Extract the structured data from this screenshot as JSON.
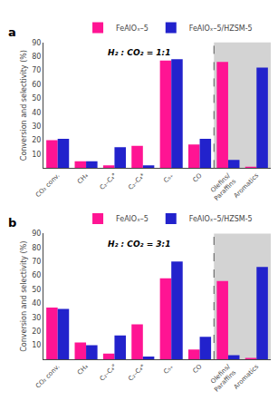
{
  "chart_data": [
    {
      "type": "bar",
      "title": "H₂ : CO₂ = 1:1",
      "annotations": [
        "a"
      ],
      "categories": [
        "CO₂ conv.",
        "CH₄",
        "C₂–C₄°",
        "C₂–C₄*",
        "C₅₊",
        "CO",
        "Olefins/\nParaffins",
        "Aromatics"
      ],
      "series": [
        {
          "name": "FeAlOₓ–5",
          "color": "#FF1493",
          "values": [
            20,
            5,
            2,
            16,
            77,
            17,
            76,
            1
          ]
        },
        {
          "name": "FeAlOₓ–5/HZSM-5",
          "color": "#2222CC",
          "values": [
            21,
            5,
            15,
            2,
            78,
            21,
            6,
            72
          ]
        }
      ],
      "ylabel": "Conversion and selectivity (%)",
      "ylim": [
        0,
        90
      ],
      "yticks": [
        10,
        20,
        30,
        40,
        50,
        60,
        70,
        80,
        90
      ],
      "grid": false,
      "legend": "top"
    },
    {
      "type": "bar",
      "title": "H₂ : CO₂ = 3:1",
      "annotations": [
        "b"
      ],
      "categories": [
        "CO₂ conv.",
        "CH₄",
        "C₂–C₄°",
        "C₂–C₄*",
        "C₅₊",
        "CO",
        "Olefins/\nParaffins",
        "Aromatics"
      ],
      "series": [
        {
          "name": "FeAlOₓ–5",
          "color": "#FF1493",
          "values": [
            37,
            12,
            4,
            25,
            58,
            7,
            56,
            1
          ]
        },
        {
          "name": "FeAlOₓ–5/HZSM-5",
          "color": "#2222CC",
          "values": [
            36,
            10,
            17,
            2,
            70,
            16,
            3,
            66
          ]
        }
      ],
      "ylabel": "Conversion and selectivity (%)",
      "ylim": [
        0,
        90
      ],
      "yticks": [
        10,
        20,
        30,
        40,
        50,
        60,
        70,
        80,
        90
      ],
      "grid": false,
      "legend": "top"
    }
  ]
}
